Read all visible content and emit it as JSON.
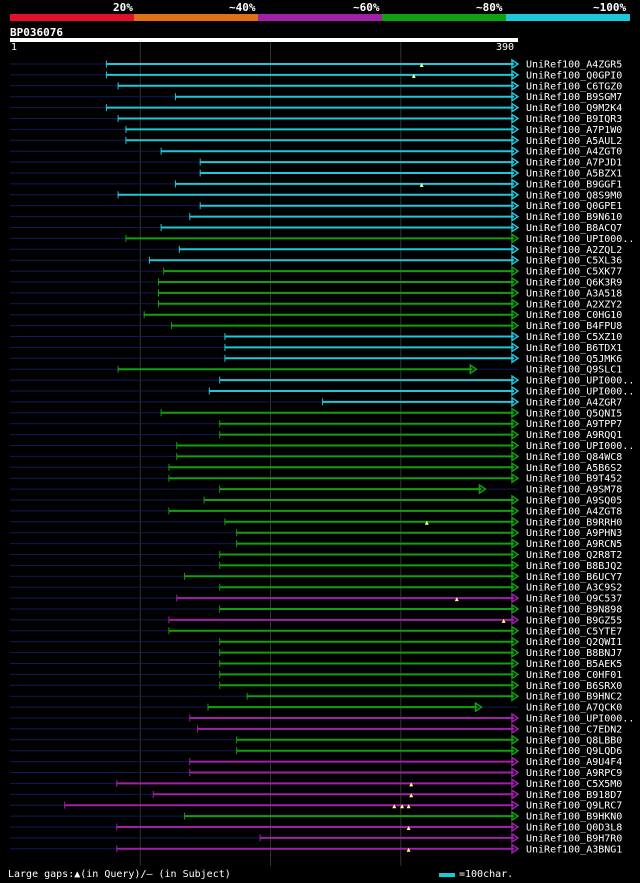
{
  "legend": {
    "labels": [
      "20%",
      "~40%",
      "~60%",
      "~80%",
      "~100%"
    ],
    "colors": [
      "#e0102a",
      "#e07018",
      "#a020a8",
      "#10a010",
      "#1ec8d8"
    ]
  },
  "query": {
    "id": "BP036076",
    "start_label": "1",
    "end_label": "390",
    "length": 390
  },
  "footer": {
    "gaps_text": "Large gaps:▲(in Query)/– (in Subject)",
    "scale_text": "=100char."
  },
  "chart_data": {
    "type": "alignment-overview",
    "title": "BP036076",
    "query_length": 390,
    "color_classes": [
      "20%",
      "~40%",
      "~60%",
      "~80%",
      "~100%"
    ],
    "hits": [
      {
        "name": "UniRef100_A4ZGR5",
        "start": 74,
        "end": 390,
        "identity": "~100%",
        "arrow": true,
        "gaps": [
          316
        ]
      },
      {
        "name": "UniRef100_Q0GPI0",
        "start": 74,
        "end": 390,
        "identity": "~100%",
        "arrow": true,
        "gaps": [
          310
        ]
      },
      {
        "name": "UniRef100_C6TGZ0",
        "start": 83,
        "end": 390,
        "identity": "~100%",
        "arrow": true,
        "gaps": []
      },
      {
        "name": "UniRef100_B9SGM7",
        "start": 127,
        "end": 390,
        "identity": "~100%",
        "arrow": true,
        "gaps": []
      },
      {
        "name": "UniRef100_Q9M2K4",
        "start": 74,
        "end": 390,
        "identity": "~100%",
        "arrow": true,
        "gaps": []
      },
      {
        "name": "UniRef100_B9IQR3",
        "start": 83,
        "end": 390,
        "identity": "~100%",
        "arrow": true,
        "gaps": []
      },
      {
        "name": "UniRef100_A7P1W0",
        "start": 89,
        "end": 390,
        "identity": "~100%",
        "arrow": true,
        "gaps": []
      },
      {
        "name": "UniRef100_A5AUL2",
        "start": 89,
        "end": 390,
        "identity": "~100%",
        "arrow": true,
        "gaps": []
      },
      {
        "name": "UniRef100_A4ZGT0",
        "start": 116,
        "end": 390,
        "identity": "~100%",
        "arrow": true,
        "gaps": []
      },
      {
        "name": "UniRef100_A7PJD1",
        "start": 146,
        "end": 390,
        "identity": "~100%",
        "arrow": true,
        "gaps": []
      },
      {
        "name": "UniRef100_A5BZX1",
        "start": 146,
        "end": 390,
        "identity": "~100%",
        "arrow": true,
        "gaps": []
      },
      {
        "name": "UniRef100_B9GGF1",
        "start": 127,
        "end": 390,
        "identity": "~100%",
        "arrow": true,
        "gaps": [
          316
        ]
      },
      {
        "name": "UniRef100_Q8S9M0",
        "start": 83,
        "end": 390,
        "identity": "~100%",
        "arrow": true,
        "gaps": []
      },
      {
        "name": "UniRef100_Q0GPE1",
        "start": 146,
        "end": 390,
        "identity": "~100%",
        "arrow": true,
        "gaps": []
      },
      {
        "name": "UniRef100_B9N610",
        "start": 138,
        "end": 390,
        "identity": "~100%",
        "arrow": true,
        "gaps": []
      },
      {
        "name": "UniRef100_B8ACQ7",
        "start": 116,
        "end": 390,
        "identity": "~100%",
        "arrow": true,
        "gaps": []
      },
      {
        "name": "UniRef100_UPI000..",
        "start": 89,
        "end": 390,
        "identity": "~80%",
        "arrow": true,
        "gaps": []
      },
      {
        "name": "UniRef100_A2ZQL2",
        "start": 130,
        "end": 390,
        "identity": "~100%",
        "arrow": true,
        "gaps": []
      },
      {
        "name": "UniRef100_C5XL36",
        "start": 107,
        "end": 390,
        "identity": "~100%",
        "arrow": true,
        "gaps": []
      },
      {
        "name": "UniRef100_C5XK77",
        "start": 118,
        "end": 390,
        "identity": "~80%",
        "arrow": true,
        "gaps": []
      },
      {
        "name": "UniRef100_Q6K3R9",
        "start": 114,
        "end": 390,
        "identity": "~80%",
        "arrow": true,
        "gaps": []
      },
      {
        "name": "UniRef100_A3A518",
        "start": 114,
        "end": 390,
        "identity": "~80%",
        "arrow": true,
        "gaps": []
      },
      {
        "name": "UniRef100_A2XZY2",
        "start": 114,
        "end": 390,
        "identity": "~80%",
        "arrow": true,
        "gaps": []
      },
      {
        "name": "UniRef100_C0HG10",
        "start": 103,
        "end": 390,
        "identity": "~80%",
        "arrow": true,
        "gaps": []
      },
      {
        "name": "UniRef100_B4FPU8",
        "start": 124,
        "end": 390,
        "identity": "~80%",
        "arrow": true,
        "gaps": []
      },
      {
        "name": "UniRef100_C5XZ10",
        "start": 165,
        "end": 390,
        "identity": "~100%",
        "arrow": true,
        "gaps": []
      },
      {
        "name": "UniRef100_B6TDX1",
        "start": 165,
        "end": 390,
        "identity": "~100%",
        "arrow": true,
        "gaps": []
      },
      {
        "name": "UniRef100_Q5JMK6",
        "start": 165,
        "end": 390,
        "identity": "~100%",
        "arrow": true,
        "gaps": []
      },
      {
        "name": "UniRef100_Q9SLC1",
        "start": 83,
        "end": 358,
        "identity": "~80%",
        "arrow": true,
        "gaps": []
      },
      {
        "name": "UniRef100_UPI000..",
        "start": 161,
        "end": 390,
        "identity": "~100%",
        "arrow": true,
        "gaps": []
      },
      {
        "name": "UniRef100_UPI000..",
        "start": 153,
        "end": 390,
        "identity": "~100%",
        "arrow": true,
        "gaps": []
      },
      {
        "name": "UniRef100_A4ZGR7",
        "start": 240,
        "end": 390,
        "identity": "~100%",
        "arrow": true,
        "gaps": []
      },
      {
        "name": "UniRef100_Q5QNI5",
        "start": 116,
        "end": 390,
        "identity": "~80%",
        "arrow": true,
        "gaps": []
      },
      {
        "name": "UniRef100_A9TPP7",
        "start": 161,
        "end": 390,
        "identity": "~80%",
        "arrow": true,
        "gaps": []
      },
      {
        "name": "UniRef100_A9RQQ1",
        "start": 161,
        "end": 390,
        "identity": "~80%",
        "arrow": true,
        "gaps": []
      },
      {
        "name": "UniRef100_UPI000..",
        "start": 128,
        "end": 390,
        "identity": "~80%",
        "arrow": true,
        "gaps": []
      },
      {
        "name": "UniRef100_Q84WC8",
        "start": 128,
        "end": 390,
        "identity": "~80%",
        "arrow": true,
        "gaps": []
      },
      {
        "name": "UniRef100_A5B6S2",
        "start": 122,
        "end": 390,
        "identity": "~80%",
        "arrow": true,
        "gaps": []
      },
      {
        "name": "UniRef100_B9T452",
        "start": 122,
        "end": 390,
        "identity": "~80%",
        "arrow": true,
        "gaps": []
      },
      {
        "name": "UniRef100_A9SM78",
        "start": 161,
        "end": 365,
        "identity": "~80%",
        "arrow": true,
        "gaps": []
      },
      {
        "name": "UniRef100_A9SQ05",
        "start": 149,
        "end": 390,
        "identity": "~80%",
        "arrow": true,
        "gaps": []
      },
      {
        "name": "UniRef100_A4ZGT8",
        "start": 122,
        "end": 390,
        "identity": "~80%",
        "arrow": true,
        "gaps": []
      },
      {
        "name": "UniRef100_B9RRH0",
        "start": 165,
        "end": 390,
        "identity": "~80%",
        "arrow": true,
        "gaps": [
          320
        ]
      },
      {
        "name": "UniRef100_A9PHN3",
        "start": 174,
        "end": 390,
        "identity": "~80%",
        "arrow": true,
        "gaps": []
      },
      {
        "name": "UniRef100_A9RCN5",
        "start": 174,
        "end": 390,
        "identity": "~80%",
        "arrow": true,
        "gaps": []
      },
      {
        "name": "UniRef100_Q2R8T2",
        "start": 161,
        "end": 390,
        "identity": "~80%",
        "arrow": true,
        "gaps": []
      },
      {
        "name": "UniRef100_B8BJQ2",
        "start": 161,
        "end": 390,
        "identity": "~80%",
        "arrow": true,
        "gaps": []
      },
      {
        "name": "UniRef100_B6UCY7",
        "start": 134,
        "end": 390,
        "identity": "~80%",
        "arrow": true,
        "gaps": []
      },
      {
        "name": "UniRef100_A3C9S2",
        "start": 161,
        "end": 390,
        "identity": "~80%",
        "arrow": true,
        "gaps": []
      },
      {
        "name": "UniRef100_Q9C537",
        "start": 128,
        "end": 390,
        "identity": "~60%",
        "arrow": true,
        "gaps": [
          343
        ]
      },
      {
        "name": "UniRef100_B9N898",
        "start": 161,
        "end": 390,
        "identity": "~80%",
        "arrow": true,
        "gaps": []
      },
      {
        "name": "UniRef100_B9GZ55",
        "start": 122,
        "end": 390,
        "identity": "~60%",
        "arrow": true,
        "gaps": [
          379
        ]
      },
      {
        "name": "UniRef100_C5YTE7",
        "start": 122,
        "end": 390,
        "identity": "~80%",
        "arrow": true,
        "gaps": []
      },
      {
        "name": "UniRef100_Q2QWI1",
        "start": 161,
        "end": 390,
        "identity": "~80%",
        "arrow": true,
        "gaps": []
      },
      {
        "name": "UniRef100_B8BNJ7",
        "start": 161,
        "end": 390,
        "identity": "~80%",
        "arrow": true,
        "gaps": []
      },
      {
        "name": "UniRef100_B5AEK5",
        "start": 161,
        "end": 390,
        "identity": "~80%",
        "arrow": true,
        "gaps": []
      },
      {
        "name": "UniRef100_C0HF01",
        "start": 161,
        "end": 390,
        "identity": "~80%",
        "arrow": true,
        "gaps": []
      },
      {
        "name": "UniRef100_B6SRX0",
        "start": 161,
        "end": 390,
        "identity": "~80%",
        "arrow": true,
        "gaps": []
      },
      {
        "name": "UniRef100_B9HNC2",
        "start": 182,
        "end": 390,
        "identity": "~80%",
        "arrow": true,
        "gaps": []
      },
      {
        "name": "UniRef100_A7QCK0",
        "start": 152,
        "end": 362,
        "identity": "~80%",
        "arrow": true,
        "gaps": []
      },
      {
        "name": "UniRef100_UPI000..",
        "start": 138,
        "end": 390,
        "identity": "~60%",
        "arrow": true,
        "gaps": []
      },
      {
        "name": "UniRef100_C7EDN2",
        "start": 144,
        "end": 390,
        "identity": "~60%",
        "arrow": true,
        "gaps": []
      },
      {
        "name": "UniRef100_Q8LBB0",
        "start": 174,
        "end": 390,
        "identity": "~80%",
        "arrow": true,
        "gaps": []
      },
      {
        "name": "UniRef100_Q9LQD6",
        "start": 174,
        "end": 390,
        "identity": "~80%",
        "arrow": true,
        "gaps": []
      },
      {
        "name": "UniRef100_A9U4F4",
        "start": 138,
        "end": 390,
        "identity": "~60%",
        "arrow": true,
        "gaps": []
      },
      {
        "name": "UniRef100_A9RPC9",
        "start": 138,
        "end": 390,
        "identity": "~60%",
        "arrow": true,
        "gaps": []
      },
      {
        "name": "UniRef100_C5X5M0",
        "start": 82,
        "end": 390,
        "identity": "~60%",
        "arrow": true,
        "gaps": [
          308
        ]
      },
      {
        "name": "UniRef100_B918D7",
        "start": 110,
        "end": 390,
        "identity": "~60%",
        "arrow": true,
        "gaps": [
          308
        ]
      },
      {
        "name": "UniRef100_Q9LRC7",
        "start": 42,
        "end": 390,
        "identity": "~60%",
        "arrow": true,
        "gaps": [
          295,
          301,
          306
        ]
      },
      {
        "name": "UniRef100_B9HKN0",
        "start": 134,
        "end": 390,
        "identity": "~80%",
        "arrow": true,
        "gaps": []
      },
      {
        "name": "UniRef100_Q0D3L8",
        "start": 82,
        "end": 390,
        "identity": "~60%",
        "arrow": true,
        "gaps": [
          306
        ]
      },
      {
        "name": "UniRef100_B9H7R0",
        "start": 192,
        "end": 390,
        "identity": "~60%",
        "arrow": true,
        "gaps": []
      },
      {
        "name": "UniRef100_A3BNG1",
        "start": 82,
        "end": 390,
        "identity": "~60%",
        "arrow": true,
        "gaps": [
          306
        ]
      }
    ]
  }
}
